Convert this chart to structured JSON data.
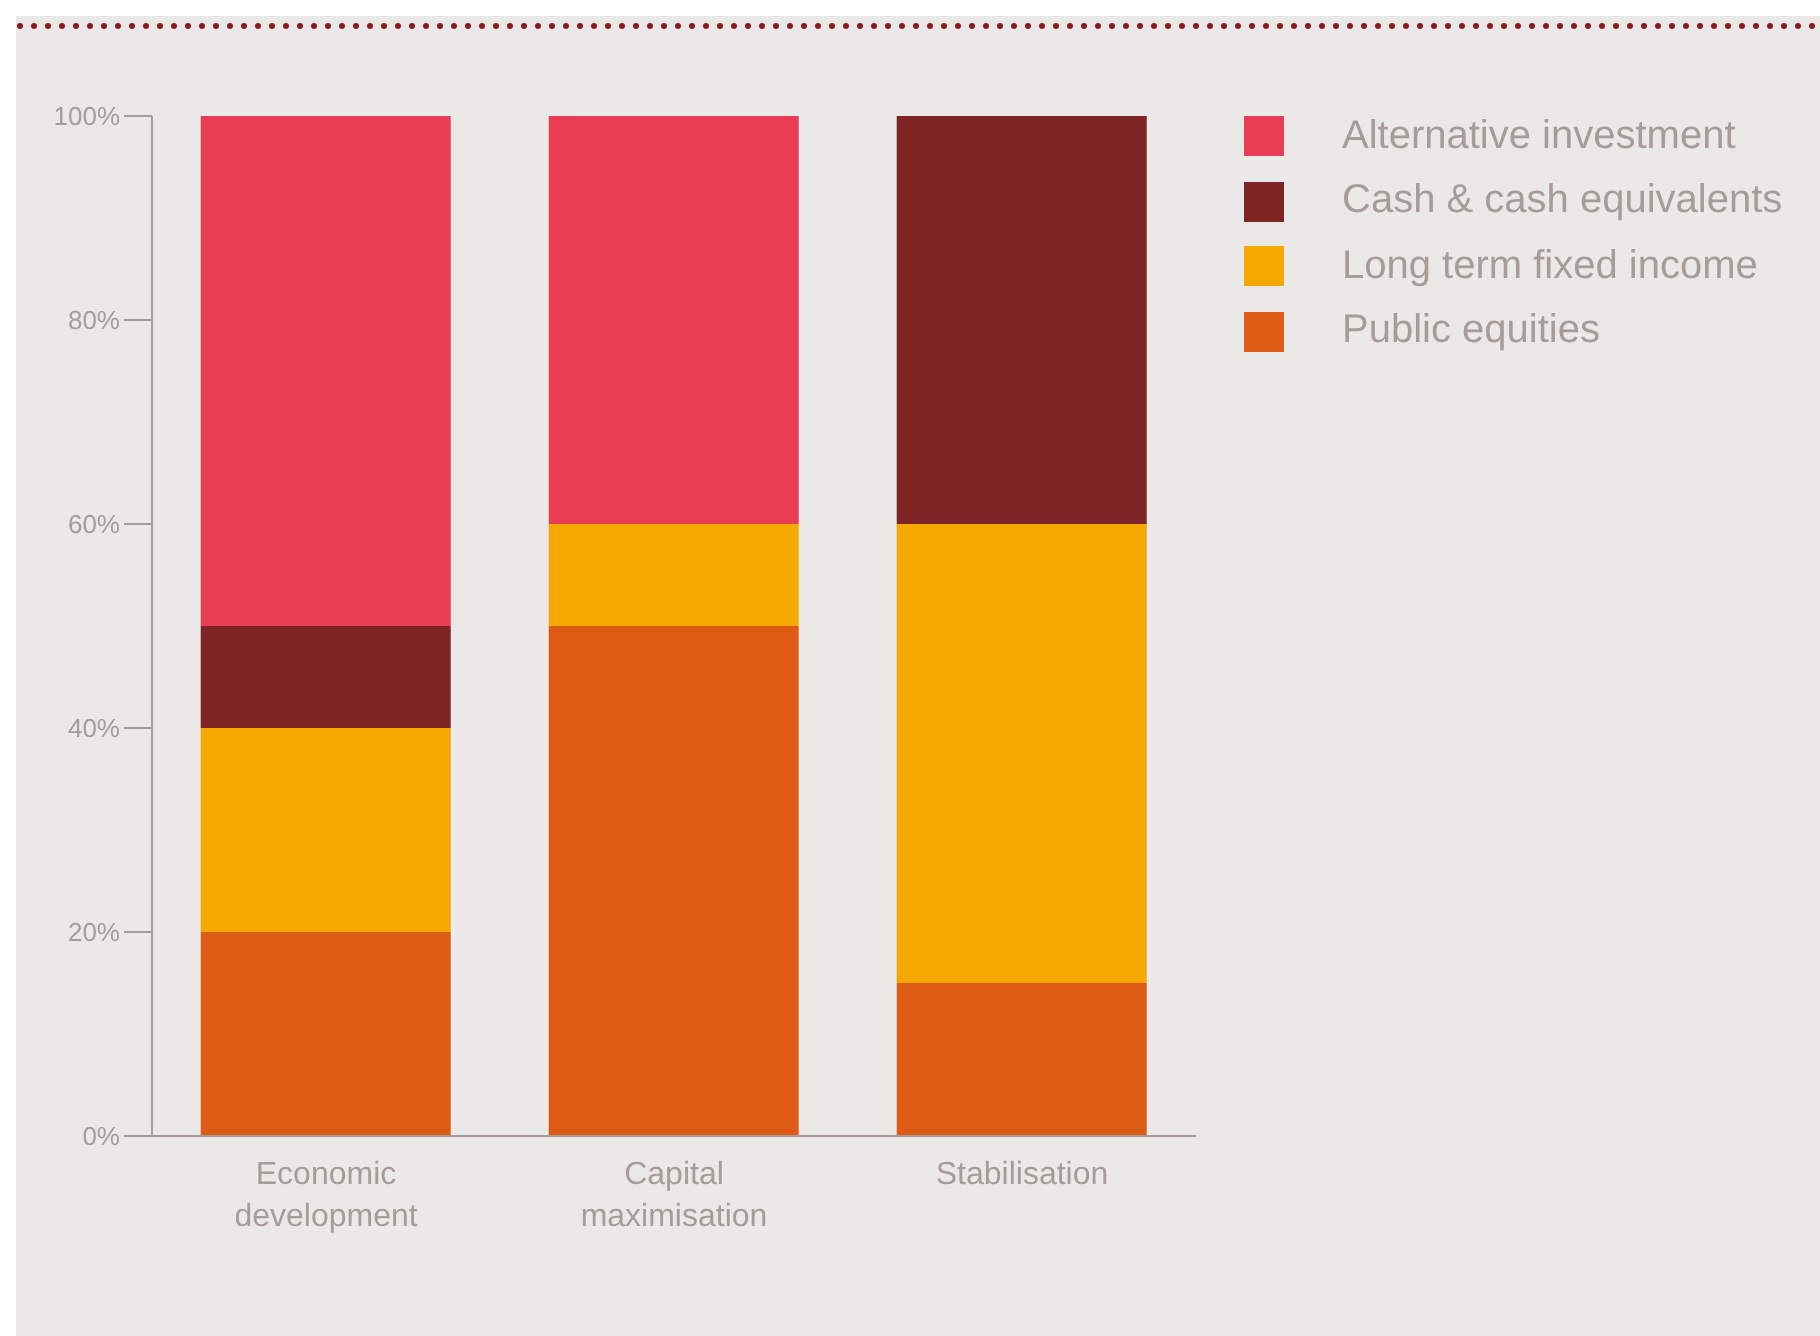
{
  "chart_data": {
    "type": "bar",
    "stacked": true,
    "categories": [
      "Economic development",
      "Capital maximisation",
      "Stabilisation"
    ],
    "series": [
      {
        "name": "Public equities",
        "color": "#de5b16",
        "values": [
          20,
          50,
          15
        ]
      },
      {
        "name": "Long term fixed income",
        "color": "#f5a800",
        "values": [
          20,
          10,
          45
        ]
      },
      {
        "name": "Cash & cash equivalents",
        "color": "#7f2424",
        "values": [
          10,
          0,
          40
        ]
      },
      {
        "name": "Alternative investment",
        "color": "#e83d53",
        "values": [
          50,
          40,
          0
        ]
      }
    ],
    "ylim": [
      0,
      100
    ],
    "yticks": [
      {
        "value": 0,
        "label": "0%"
      },
      {
        "value": 20,
        "label": "20%"
      },
      {
        "value": 40,
        "label": "40%"
      },
      {
        "value": 60,
        "label": "60%"
      },
      {
        "value": 80,
        "label": "80%"
      },
      {
        "value": 100,
        "label": "100%"
      }
    ],
    "grid": false,
    "legend": "top right"
  }
}
